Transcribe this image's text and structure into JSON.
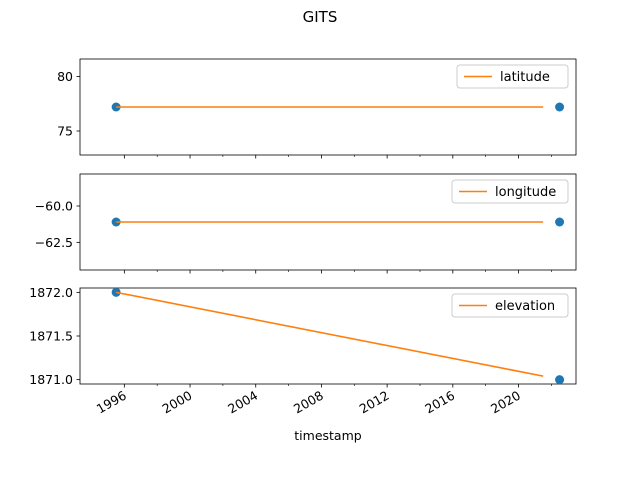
{
  "chart_data": {
    "type": "line",
    "title": "GITS",
    "xlabel": "timestamp",
    "x_range": [
      1993.3,
      2023.5
    ],
    "x_ticks": [
      {
        "value": 1996,
        "label": "1996"
      },
      {
        "value": 2000,
        "label": "2000"
      },
      {
        "value": 2004,
        "label": "2004"
      },
      {
        "value": 2008,
        "label": "2008"
      },
      {
        "value": 2012,
        "label": "2012"
      },
      {
        "value": 2016,
        "label": "2016"
      },
      {
        "value": 2020,
        "label": "2020"
      }
    ],
    "x_minor_ticks": [
      1998,
      2002,
      2006,
      2010,
      2014,
      2018,
      2022
    ],
    "colors": {
      "scatter": "#1f77b4",
      "line": "#ff7f0e"
    },
    "panels": [
      {
        "name": "latitude",
        "legend": "latitude",
        "ylim": [
          72.8,
          81.6
        ],
        "y_ticks": [
          {
            "value": 75,
            "label": "75"
          },
          {
            "value": 80,
            "label": "80"
          }
        ],
        "line": {
          "x": [
            1995.5,
            2021.5
          ],
          "y": [
            77.2,
            77.2
          ]
        },
        "scatter": {
          "x": [
            1995.5,
            2022.5
          ],
          "y": [
            77.2,
            77.2
          ]
        }
      },
      {
        "name": "longitude",
        "legend": "longitude",
        "ylim": [
          -64.4,
          -57.8
        ],
        "y_ticks": [
          {
            "value": -62.5,
            "label": "−62.5"
          },
          {
            "value": -60.0,
            "label": "−60.0"
          }
        ],
        "line": {
          "x": [
            1995.5,
            2021.5
          ],
          "y": [
            -61.1,
            -61.1
          ]
        },
        "scatter": {
          "x": [
            1995.5,
            2022.5
          ],
          "y": [
            -61.1,
            -61.1
          ]
        }
      },
      {
        "name": "elevation",
        "legend": "elevation",
        "ylim": [
          1870.95,
          1872.05
        ],
        "y_ticks": [
          {
            "value": 1871.0,
            "label": "1871.0"
          },
          {
            "value": 1871.5,
            "label": "1871.5"
          },
          {
            "value": 1872.0,
            "label": "1872.0"
          }
        ],
        "line": {
          "x": [
            1995.5,
            2021.5
          ],
          "y": [
            1872.0,
            1871.04
          ]
        },
        "scatter": {
          "x": [
            1995.5,
            2022.5
          ],
          "y": [
            1872.0,
            1871.0
          ]
        }
      }
    ]
  }
}
